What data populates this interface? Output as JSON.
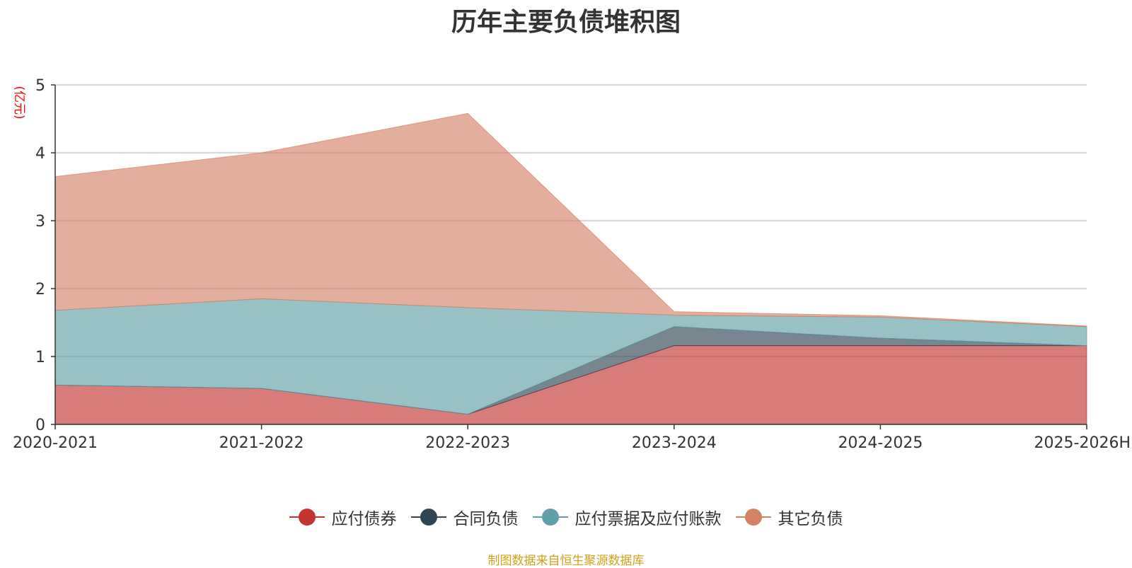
{
  "chart_data": {
    "type": "area",
    "stacked": true,
    "title": "历年主要负债堆积图",
    "ylabel": "(亿元)",
    "xlabel": "",
    "categories": [
      "2020-2021",
      "2021-2022",
      "2022-2023",
      "2023-2024",
      "2024-2025",
      "2025-2026H"
    ],
    "ylim": [
      0,
      5
    ],
    "yticks": [
      0,
      1,
      2,
      3,
      4,
      5
    ],
    "grid": true,
    "legend_position": "bottom",
    "series": [
      {
        "name": "应付债券",
        "color": "#c23531",
        "values": [
          0.58,
          0.53,
          0.15,
          1.16,
          1.16,
          1.16
        ]
      },
      {
        "name": "合同负债",
        "color": "#2f4554",
        "values": [
          0.0,
          0.0,
          0.0,
          0.28,
          0.11,
          0.0
        ]
      },
      {
        "name": "应付票据及应付账款",
        "color": "#61a0a8",
        "values": [
          1.1,
          1.32,
          1.57,
          0.17,
          0.31,
          0.28
        ]
      },
      {
        "name": "其它负债",
        "color": "#d48265",
        "values": [
          1.97,
          2.15,
          2.86,
          0.05,
          0.02,
          0.01
        ]
      }
    ],
    "source": "制图数据来自恒生聚源数据库"
  }
}
